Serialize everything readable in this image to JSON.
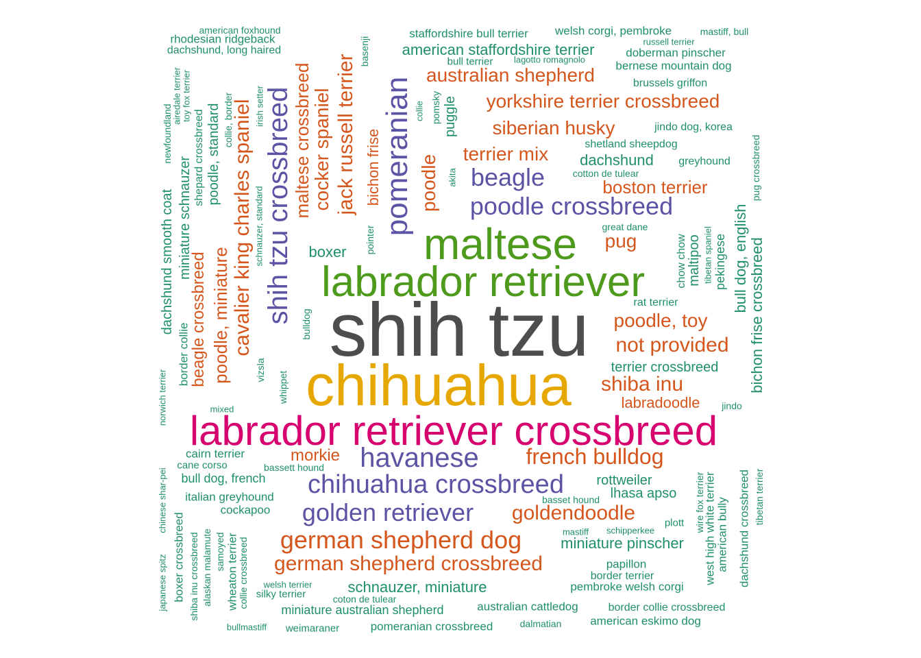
{
  "colors": {
    "c1": "#4d4d4d",
    "c2": "#e6a800",
    "c3": "#d6006f",
    "c4": "#4e9a1d",
    "c5": "#5b53a3",
    "c6": "#d5561c",
    "c7": "#1f8f6a"
  },
  "words": [
    {
      "text": "shih tzu",
      "color": "c1"
    },
    {
      "text": "chihuahua",
      "color": "c2"
    },
    {
      "text": "labrador retriever crossbreed",
      "color": "c3"
    },
    {
      "text": "labrador retriever",
      "color": "c4"
    },
    {
      "text": "maltese",
      "color": "c4"
    },
    {
      "text": "pomeranian",
      "color": "c5"
    },
    {
      "text": "shih tzu crossbreed",
      "color": "c5"
    },
    {
      "text": "havanese",
      "color": "c5"
    },
    {
      "text": "chihuahua crossbreed",
      "color": "c5"
    },
    {
      "text": "golden retriever",
      "color": "c5"
    },
    {
      "text": "poodle crossbreed",
      "color": "c5"
    },
    {
      "text": "beagle",
      "color": "c5"
    },
    {
      "text": "german shepherd dog",
      "color": "c6"
    },
    {
      "text": "german shepherd crossbreed",
      "color": "c6"
    },
    {
      "text": "french bulldog",
      "color": "c6"
    },
    {
      "text": "goldendoodle",
      "color": "c6"
    },
    {
      "text": "morkie",
      "color": "c6"
    },
    {
      "text": "cavalier king charles spaniel",
      "color": "c6"
    },
    {
      "text": "jack russell terrier",
      "color": "c6"
    },
    {
      "text": "cocker spaniel",
      "color": "c6"
    },
    {
      "text": "maltese crossbreed",
      "color": "c6"
    },
    {
      "text": "poodle",
      "color": "c6"
    },
    {
      "text": "poodle, miniature",
      "color": "c6"
    },
    {
      "text": "beagle crossbreed",
      "color": "c6"
    },
    {
      "text": "australian shepherd",
      "color": "c6"
    },
    {
      "text": "yorkshire terrier crossbreed",
      "color": "c6"
    },
    {
      "text": "siberian husky",
      "color": "c6"
    },
    {
      "text": "terrier mix",
      "color": "c6"
    },
    {
      "text": "boston terrier",
      "color": "c6"
    },
    {
      "text": "pug",
      "color": "c6"
    },
    {
      "text": "poodle, toy",
      "color": "c6"
    },
    {
      "text": "not provided",
      "color": "c6"
    },
    {
      "text": "shiba inu",
      "color": "c6"
    },
    {
      "text": "labradoodle",
      "color": "c6"
    },
    {
      "text": "bichon frise",
      "color": "c6"
    },
    {
      "text": "miniature schnauzer",
      "color": "c7"
    },
    {
      "text": "dachshund smooth coat",
      "color": "c7"
    },
    {
      "text": "poodle, standard",
      "color": "c7"
    },
    {
      "text": "boxer",
      "color": "c7"
    },
    {
      "text": "american staffordshire terrier",
      "color": "c7"
    },
    {
      "text": "staffordshire bull terrier",
      "color": "c7"
    },
    {
      "text": "welsh corgi, pembroke",
      "color": "c7"
    },
    {
      "text": "mastiff, bull",
      "color": "c7"
    },
    {
      "text": "russell terrier",
      "color": "c7"
    },
    {
      "text": "doberman pinscher",
      "color": "c7"
    },
    {
      "text": "bull terrier",
      "color": "c7"
    },
    {
      "text": "lagotto romagnolo",
      "color": "c7"
    },
    {
      "text": "bernese mountain dog",
      "color": "c7"
    },
    {
      "text": "brussels griffon",
      "color": "c7"
    },
    {
      "text": "american foxhound",
      "color": "c7"
    },
    {
      "text": "rhodesian ridgeback",
      "color": "c7"
    },
    {
      "text": "dachshund, long haired",
      "color": "c7"
    },
    {
      "text": "jindo dog, korea",
      "color": "c7"
    },
    {
      "text": "shetland sheepdog",
      "color": "c7"
    },
    {
      "text": "dachshund",
      "color": "c7"
    },
    {
      "text": "greyhound",
      "color": "c7"
    },
    {
      "text": "cotton de tulear",
      "color": "c7"
    },
    {
      "text": "great dane",
      "color": "c7"
    },
    {
      "text": "rat terrier",
      "color": "c7"
    },
    {
      "text": "terrier crossbreed",
      "color": "c7"
    },
    {
      "text": "jindo",
      "color": "c7"
    },
    {
      "text": "mixed",
      "color": "c7"
    },
    {
      "text": "cairn terrier",
      "color": "c7"
    },
    {
      "text": "cane corso",
      "color": "c7"
    },
    {
      "text": "bassett hound",
      "color": "c7"
    },
    {
      "text": "bull dog, french",
      "color": "c7"
    },
    {
      "text": "italian greyhound",
      "color": "c7"
    },
    {
      "text": "cockapoo",
      "color": "c7"
    },
    {
      "text": "rottweiler",
      "color": "c7"
    },
    {
      "text": "lhasa apso",
      "color": "c7"
    },
    {
      "text": "basset hound",
      "color": "c7"
    },
    {
      "text": "mastiff",
      "color": "c7"
    },
    {
      "text": "schipperkee",
      "color": "c7"
    },
    {
      "text": "plott",
      "color": "c7"
    },
    {
      "text": "miniature pinscher",
      "color": "c7"
    },
    {
      "text": "papillon",
      "color": "c7"
    },
    {
      "text": "border terrier",
      "color": "c7"
    },
    {
      "text": "pembroke welsh corgi",
      "color": "c7"
    },
    {
      "text": "schnauzer, miniature",
      "color": "c7"
    },
    {
      "text": "welsh terrier",
      "color": "c7"
    },
    {
      "text": "silky terrier",
      "color": "c7"
    },
    {
      "text": "coton de tulear",
      "color": "c7"
    },
    {
      "text": "miniature australian shepherd",
      "color": "c7"
    },
    {
      "text": "australian cattledog",
      "color": "c7"
    },
    {
      "text": "border collie crossbreed",
      "color": "c7"
    },
    {
      "text": "american eskimo dog",
      "color": "c7"
    },
    {
      "text": "dalmatian",
      "color": "c7"
    },
    {
      "text": "pomeranian crossbreed",
      "color": "c7"
    },
    {
      "text": "weimaraner",
      "color": "c7"
    },
    {
      "text": "bullmastiff",
      "color": "c7"
    },
    {
      "text": "airedale terrier",
      "color": "c7"
    },
    {
      "text": "toy fox terrier",
      "color": "c7"
    },
    {
      "text": "newfoundland",
      "color": "c7"
    },
    {
      "text": "shepard crossbreed",
      "color": "c7"
    },
    {
      "text": "collie, border",
      "color": "c7"
    },
    {
      "text": "irish setter",
      "color": "c7"
    },
    {
      "text": "basenji",
      "color": "c7"
    },
    {
      "text": "collie",
      "color": "c7"
    },
    {
      "text": "pomsky",
      "color": "c7"
    },
    {
      "text": "puggle",
      "color": "c7"
    },
    {
      "text": "akita",
      "color": "c7"
    },
    {
      "text": "pointer",
      "color": "c7"
    },
    {
      "text": "schnauzer, standard",
      "color": "c7"
    },
    {
      "text": "bulldog",
      "color": "c7"
    },
    {
      "text": "border collie",
      "color": "c7"
    },
    {
      "text": "vizsla",
      "color": "c7"
    },
    {
      "text": "whippet",
      "color": "c7"
    },
    {
      "text": "norwich terrier",
      "color": "c7"
    },
    {
      "text": "pug crossbreed",
      "color": "c7"
    },
    {
      "text": "bull dog, english",
      "color": "c7"
    },
    {
      "text": "bichon frise crossbreed",
      "color": "c7"
    },
    {
      "text": "chow chow",
      "color": "c7"
    },
    {
      "text": "maltipoo",
      "color": "c7"
    },
    {
      "text": "tibetan spaniel",
      "color": "c7"
    },
    {
      "text": "pekingese",
      "color": "c7"
    },
    {
      "text": "chinese shar-pei",
      "color": "c7"
    },
    {
      "text": "japanese spitz",
      "color": "c7"
    },
    {
      "text": "boxer crossbreed",
      "color": "c7"
    },
    {
      "text": "shiba inu crossbreed",
      "color": "c7"
    },
    {
      "text": "alaskan malamute",
      "color": "c7"
    },
    {
      "text": "samoyed",
      "color": "c7"
    },
    {
      "text": "wheaton terrier",
      "color": "c7"
    },
    {
      "text": "collie crossbreed",
      "color": "c7"
    },
    {
      "text": "wire fox terrier",
      "color": "c7"
    },
    {
      "text": "west high white terrier",
      "color": "c7"
    },
    {
      "text": "american bully",
      "color": "c7"
    },
    {
      "text": "dachshund crossbreed",
      "color": "c7"
    },
    {
      "text": "tibetan terrier",
      "color": "c7"
    }
  ]
}
